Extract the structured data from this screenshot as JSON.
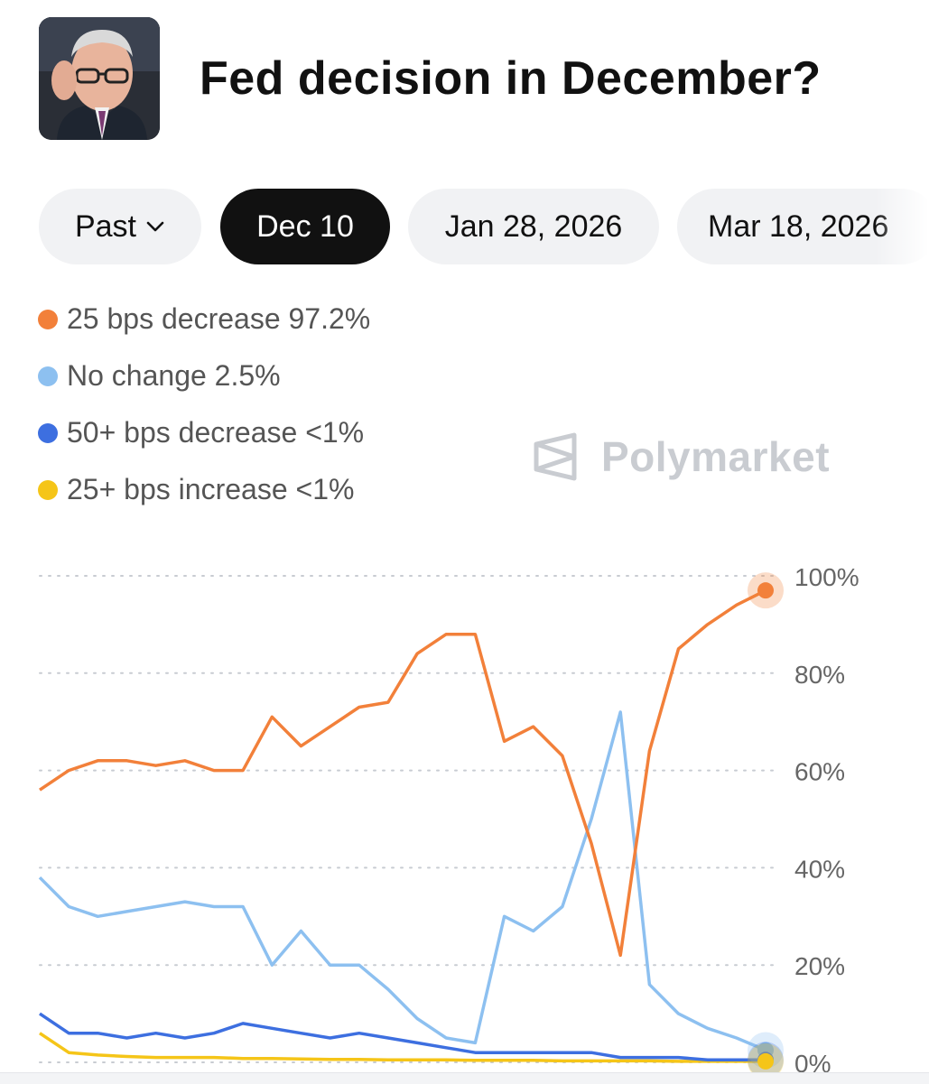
{
  "header": {
    "title": "Fed decision in December?"
  },
  "tabs": [
    {
      "label": "Past",
      "has_dropdown": true,
      "active": false
    },
    {
      "label": "Dec 10",
      "active": true
    },
    {
      "label": "Jan 28, 2026",
      "active": false
    },
    {
      "label": "Mar 18, 2026",
      "active": false
    }
  ],
  "legend": [
    {
      "label": "25 bps decrease 97.2%",
      "color": "#f2803a"
    },
    {
      "label": "No change 2.5%",
      "color": "#8dc0f0"
    },
    {
      "label": "50+ bps decrease <1%",
      "color": "#3d6fe0"
    },
    {
      "label": "25+ bps increase <1%",
      "color": "#f5c518"
    }
  ],
  "watermark": {
    "text": "Polymarket"
  },
  "chart_data": {
    "type": "line",
    "x": [
      0,
      4,
      8,
      12,
      16,
      20,
      24,
      28,
      32,
      36,
      40,
      44,
      48,
      52,
      56,
      60,
      64,
      68,
      72,
      76,
      80,
      84,
      88,
      92,
      96,
      100
    ],
    "ylim": [
      0,
      100
    ],
    "y_ticks": [
      "100%",
      "80%",
      "60%",
      "40%",
      "20%",
      "0%"
    ],
    "grid": true,
    "series": [
      {
        "name": "25 bps decrease",
        "color": "#f2803a",
        "values": [
          56,
          60,
          62,
          62,
          61,
          62,
          60,
          60,
          71,
          65,
          69,
          73,
          74,
          84,
          88,
          88,
          66,
          69,
          63,
          45,
          22,
          64,
          85,
          90,
          94,
          97
        ]
      },
      {
        "name": "No change",
        "color": "#8dc0f0",
        "values": [
          38,
          32,
          30,
          31,
          32,
          33,
          32,
          32,
          20,
          27,
          20,
          20,
          15,
          9,
          5,
          4,
          30,
          27,
          32,
          50,
          72,
          16,
          10,
          7,
          5,
          2.5
        ]
      },
      {
        "name": "50+ bps decrease",
        "color": "#3d6fe0",
        "values": [
          10,
          6,
          6,
          5,
          6,
          5,
          6,
          8,
          7,
          6,
          5,
          6,
          5,
          4,
          3,
          2,
          2,
          2,
          2,
          2,
          1,
          1,
          1,
          0.5,
          0.5,
          0.5
        ]
      },
      {
        "name": "25+ bps increase",
        "color": "#f5c518",
        "values": [
          6,
          2,
          1.5,
          1.2,
          1,
          1,
          1,
          0.8,
          0.8,
          0.7,
          0.6,
          0.6,
          0.5,
          0.5,
          0.5,
          0.4,
          0.4,
          0.4,
          0.3,
          0.3,
          0.3,
          0.3,
          0.2,
          0.2,
          0.2,
          0.2
        ]
      }
    ]
  }
}
